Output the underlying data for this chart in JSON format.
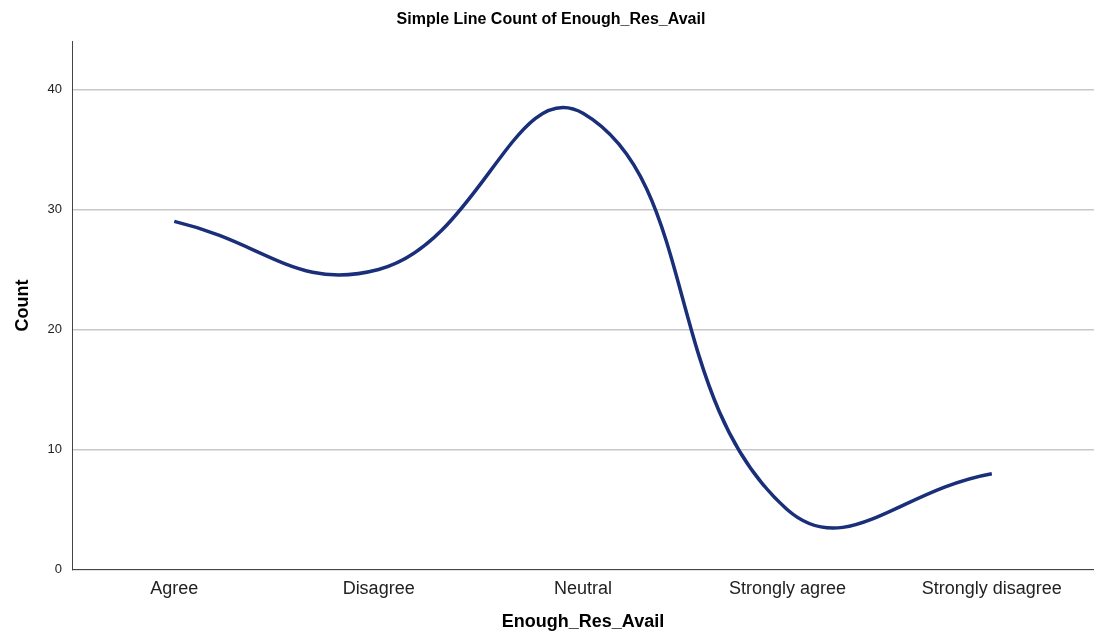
{
  "chart_data": {
    "type": "line",
    "title": "Simple Line Count of Enough_Res_Avail",
    "xlabel": "Enough_Res_Avail",
    "ylabel": "Count",
    "categories": [
      "Agree",
      "Disagree",
      "Neutral",
      "Strongly agree",
      "Strongly disagree"
    ],
    "series": [
      {
        "color": "#1a2f7a",
        "values": [
          29,
          25,
          38,
          5,
          8
        ]
      }
    ],
    "ylim": [
      0,
      44
    ],
    "yticks": [
      0,
      10,
      20,
      30,
      40
    ],
    "grid": "y",
    "legend": false,
    "marker": "none",
    "line_style": "solid"
  }
}
